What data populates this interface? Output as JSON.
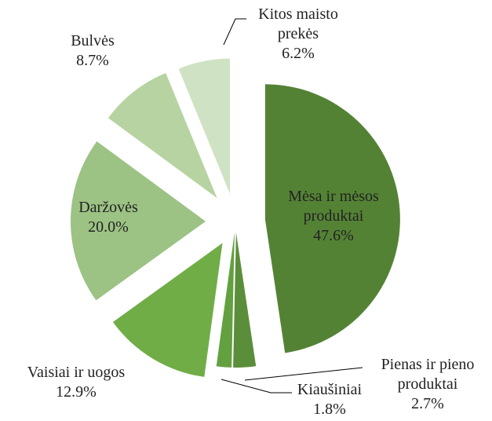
{
  "chart_data": {
    "type": "pie",
    "categories": [
      "Mėsa ir mėsos produktai",
      "Pienas ir pieno produktai",
      "Kiaušiniai",
      "Vaisiai ir uogos",
      "Daržovės",
      "Bulvės",
      "Kitos maisto prekės"
    ],
    "values": [
      47.6,
      2.7,
      1.8,
      12.9,
      20.0,
      8.7,
      6.2
    ],
    "value_labels": [
      "47.6%",
      "2.7%",
      "1.8%",
      "12.9%",
      "20.0%",
      "8.7%",
      "6.2%"
    ],
    "colors": [
      "#548235",
      "#5b8e3a",
      "#63a03f",
      "#70ad47",
      "#9cc284",
      "#b6d3a1",
      "#cfe2c3"
    ]
  }
}
